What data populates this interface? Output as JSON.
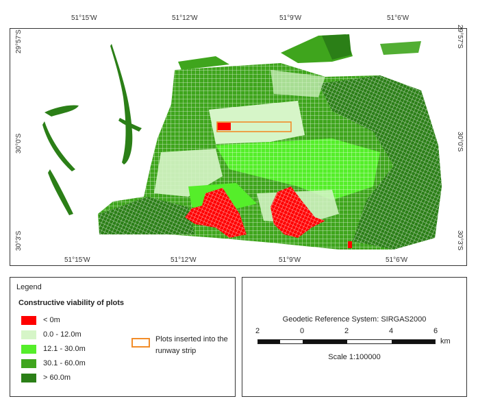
{
  "map": {
    "top_lon_labels": [
      "51°15'W",
      "51°12'W",
      "51°9'W",
      "51°6'W"
    ],
    "bottom_lon_labels": [
      "51°15'W",
      "51°12'W",
      "51°9'W",
      "51°6'W"
    ],
    "lat_labels": [
      "29°57'S",
      "30°0'S",
      "30°3'S"
    ],
    "colors": {
      "negative": "#ff0000",
      "class1": "#d6f5c8",
      "class2": "#55ee2a",
      "class3": "#3fa51d",
      "class4": "#2b7f17",
      "runway_outline": "#f28c28"
    },
    "icons": [
      "map-district-plots",
      "runway-strip-outline"
    ]
  },
  "legend": {
    "title": "Legend",
    "subtitle": "Constructive viability of plots",
    "items": [
      {
        "label": "< 0m",
        "color": "#ff0000"
      },
      {
        "label": "0.0 - 12.0m",
        "color": "#d6f5c8"
      },
      {
        "label": "12.1 - 30.0m",
        "color": "#55ee2a"
      },
      {
        "label": "30.1 - 60.0m",
        "color": "#3fa51d"
      },
      {
        "label": "> 60.0m",
        "color": "#2b7f17"
      }
    ],
    "runway_label": "Plots inserted into the runway strip"
  },
  "scale": {
    "crs": "Geodetic Reference System: SIRGAS2000",
    "ticks": [
      "2",
      "0",
      "2",
      "4",
      "6"
    ],
    "unit": "km",
    "ratio": "Scale 1:100000"
  }
}
